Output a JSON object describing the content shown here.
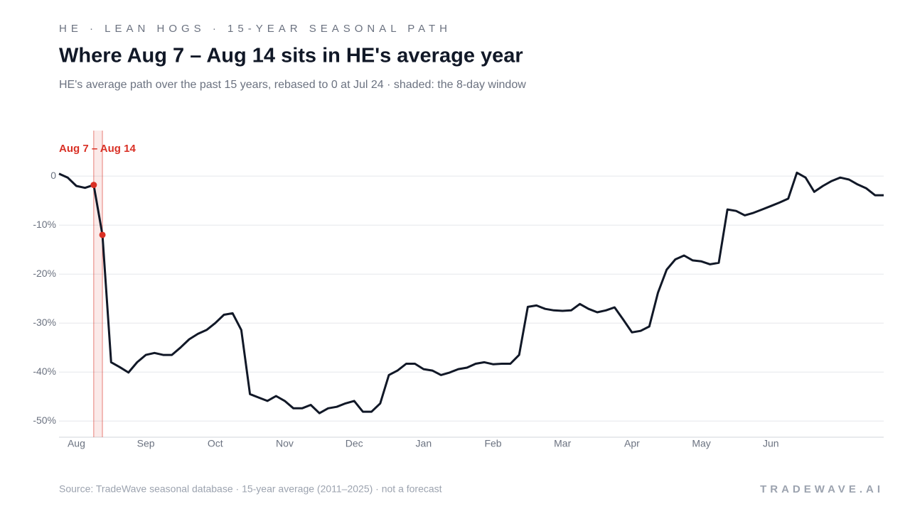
{
  "chart_data": {
    "type": "line",
    "kicker": "HE · LEAN HOGS · 15-YEAR SEASONAL PATH",
    "title": "Where Aug 7 – Aug 14 sits in HE's average year",
    "subtitle": "HE's average path over the past 15 years, rebased to 0 at Jul 24 · shaded: the 8-day window",
    "window_label": "Aug 7 – Aug 14",
    "source": "Source: TradeWave seasonal database · 15-year average (2011–2025) · not a forecast",
    "brand": "TRADEWAVE.AI",
    "color": "#111827",
    "window_color": "#d93025",
    "grid": true,
    "categories": [
      null,
      null,
      "Aug",
      null,
      null,
      null,
      null,
      null,
      null,
      null,
      "Sep",
      null,
      null,
      null,
      null,
      null,
      null,
      null,
      "Oct",
      null,
      null,
      null,
      null,
      null,
      null,
      null,
      "Nov",
      null,
      null,
      null,
      null,
      null,
      null,
      null,
      "Dec",
      null,
      null,
      null,
      null,
      null,
      null,
      null,
      "Jan",
      null,
      null,
      null,
      null,
      null,
      null,
      null,
      "Feb",
      null,
      null,
      null,
      null,
      null,
      null,
      null,
      "Mar",
      null,
      null,
      null,
      null,
      null,
      null,
      null,
      "Apr",
      null,
      null,
      null,
      null,
      null,
      null,
      null,
      "May",
      null,
      null,
      null,
      null,
      null,
      null,
      null,
      "Jun",
      null,
      null,
      null,
      null,
      null,
      null,
      null,
      null,
      null,
      null,
      null,
      null,
      null
    ],
    "values": [
      0.5,
      -0.3,
      -2,
      -2.4,
      -1.8,
      -12,
      -38,
      -39,
      -40.1,
      -38,
      -36.5,
      -36.1,
      -36.5,
      -36.5,
      -35,
      -33.3,
      -32.2,
      -31.4,
      -30,
      -28.3,
      -28,
      -31.4,
      -44.5,
      -45.2,
      -45.9,
      -44.9,
      -45.9,
      -47.4,
      -47.4,
      -46.7,
      -48.4,
      -47.4,
      -47.1,
      -46.4,
      -45.9,
      -48.1,
      -48.1,
      -46.4,
      -40.6,
      -39.7,
      -38.3,
      -38.3,
      -39.4,
      -39.7,
      -40.6,
      -40.1,
      -39.4,
      -39.1,
      -38.3,
      -38,
      -38.4,
      -38.3,
      -38.3,
      -36.5,
      -26.7,
      -26.4,
      -27.1,
      -27.4,
      -27.5,
      -27.4,
      -26.1,
      -27.1,
      -27.8,
      -27.4,
      -26.8,
      -29.3,
      -31.9,
      -31.6,
      -30.7,
      -23.8,
      -19.1,
      -17,
      -16.2,
      -17.2,
      -17.4,
      -18,
      -17.7,
      -6.8,
      -7.1,
      -8,
      -7.5,
      -6.8,
      -6.1,
      -5.4,
      -4.6,
      0.7,
      -0.3,
      -3.2,
      -2,
      -1,
      -0.3,
      -0.7,
      -1.7,
      -2.5,
      -3.9,
      -3.9
    ],
    "ylim": [
      -53.3,
      9.3
    ],
    "yticks": [
      0,
      {
        "value": -10,
        "label": "-10%"
      },
      {
        "value": -20,
        "label": "-20%"
      },
      {
        "value": -30,
        "label": "-30%"
      },
      {
        "value": -40,
        "label": "-40%"
      },
      {
        "value": -50,
        "label": "-50%"
      }
    ]
  }
}
